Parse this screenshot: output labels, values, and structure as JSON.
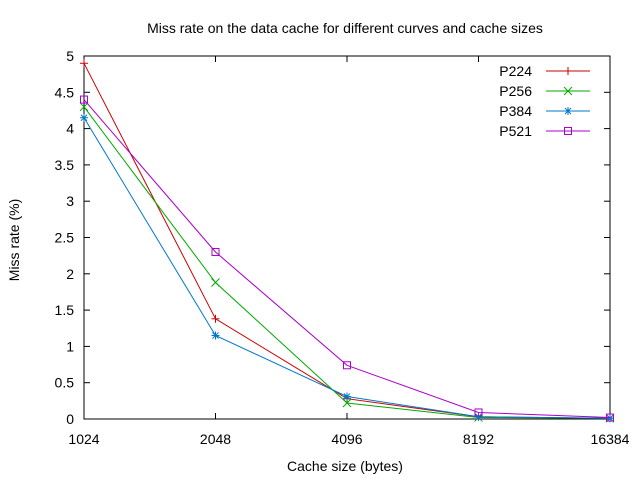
{
  "chart_data": {
    "type": "line",
    "title": "Miss rate on the data cache for different curves and cache sizes",
    "xlabel": "Cache size (bytes)",
    "ylabel": "Miss rate (%)",
    "x_scale": "log2",
    "x": [
      1024,
      2048,
      4096,
      8192,
      16384
    ],
    "x_tick_labels": [
      "1024",
      "2048",
      "4096",
      "8192",
      "16384"
    ],
    "ylim": [
      0,
      5
    ],
    "y_ticks": [
      0,
      0.5,
      1,
      1.5,
      2,
      2.5,
      3,
      3.5,
      4,
      4.5,
      5
    ],
    "y_tick_labels": [
      "0",
      "0.5",
      "1",
      "1.5",
      "2",
      "2.5",
      "3",
      "3.5",
      "4",
      "4.5",
      "5"
    ],
    "grid": false,
    "legend_position": "top-right",
    "series": [
      {
        "name": "P224",
        "color": "#cc0000",
        "marker": "plus",
        "values": [
          4.9,
          1.38,
          0.28,
          0.03,
          0.01
        ]
      },
      {
        "name": "P256",
        "color": "#00aa00",
        "marker": "cross",
        "values": [
          4.3,
          1.88,
          0.22,
          0.02,
          0.01
        ]
      },
      {
        "name": "P384",
        "color": "#0077cc",
        "marker": "star",
        "values": [
          4.15,
          1.15,
          0.31,
          0.03,
          0.01
        ]
      },
      {
        "name": "P521",
        "color": "#aa00cc",
        "marker": "square",
        "values": [
          4.4,
          2.3,
          0.74,
          0.09,
          0.02
        ]
      }
    ]
  }
}
